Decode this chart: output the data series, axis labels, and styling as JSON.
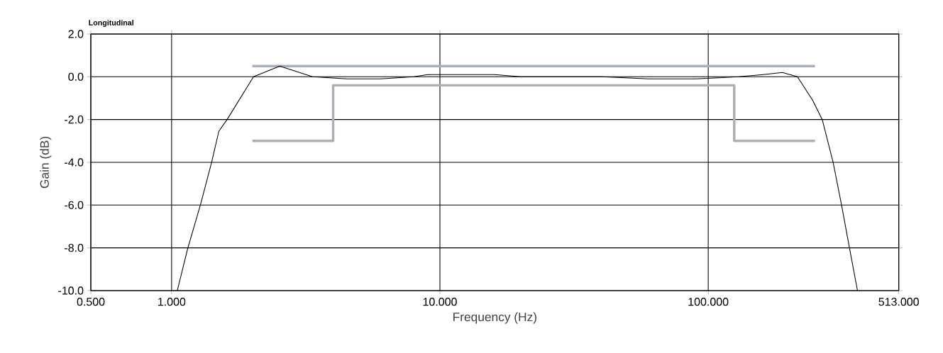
{
  "chart_data": {
    "type": "line",
    "title": "Longitudinal",
    "xlabel": "Frequency (Hz)",
    "ylabel": "Gain (dB)",
    "log": "x",
    "grid": true,
    "marker": "none",
    "xlim": [
      0.5,
      513
    ],
    "xticks": [
      {
        "value": 0.5,
        "label": "0.500"
      },
      {
        "value": 1,
        "label": "1.000"
      },
      {
        "value": 10,
        "label": "10.000"
      },
      {
        "value": 100,
        "label": "100.000"
      },
      {
        "value": 513,
        "label": "513.000"
      }
    ],
    "ylim": [
      -10,
      2
    ],
    "yticks": [
      {
        "value": -10,
        "label": "-10.0"
      },
      {
        "value": -8,
        "label": "-8.0"
      },
      {
        "value": -6,
        "label": "-6.0"
      },
      {
        "value": -4,
        "label": "-4.0"
      },
      {
        "value": -2,
        "label": "-2.0"
      },
      {
        "value": 0,
        "label": "0.0"
      },
      {
        "value": 2,
        "label": "2.0"
      }
    ],
    "series": [
      {
        "color": "#a9b0b8",
        "x": [
          2,
          250
        ],
        "values": [
          0.5,
          0.5
        ]
      },
      {
        "color": "#a9b0b8",
        "x": [
          2,
          4,
          4,
          125,
          125,
          250
        ],
        "values": [
          -3,
          -3,
          -0.4,
          -0.4,
          -3,
          -3
        ]
      },
      {
        "color": "#000000",
        "x": [
          1.05,
          1.15,
          1.28,
          1.41,
          1.5,
          1.61,
          2.02,
          2.53,
          3.35,
          4.5,
          6,
          8,
          9,
          12,
          16,
          20,
          40,
          60,
          90,
          130,
          160,
          189,
          215,
          245,
          266,
          292,
          314,
          336,
          360
        ],
        "values": [
          -10,
          -8,
          -6,
          -4,
          -2.55,
          -2,
          0,
          0.5,
          0,
          -0.1,
          -0.1,
          0,
          0.1,
          0.1,
          0.1,
          0,
          0,
          -0.1,
          -0.1,
          0,
          0.1,
          0.2,
          0,
          -1.1,
          -2,
          -4,
          -6,
          -8,
          -10
        ]
      }
    ]
  }
}
